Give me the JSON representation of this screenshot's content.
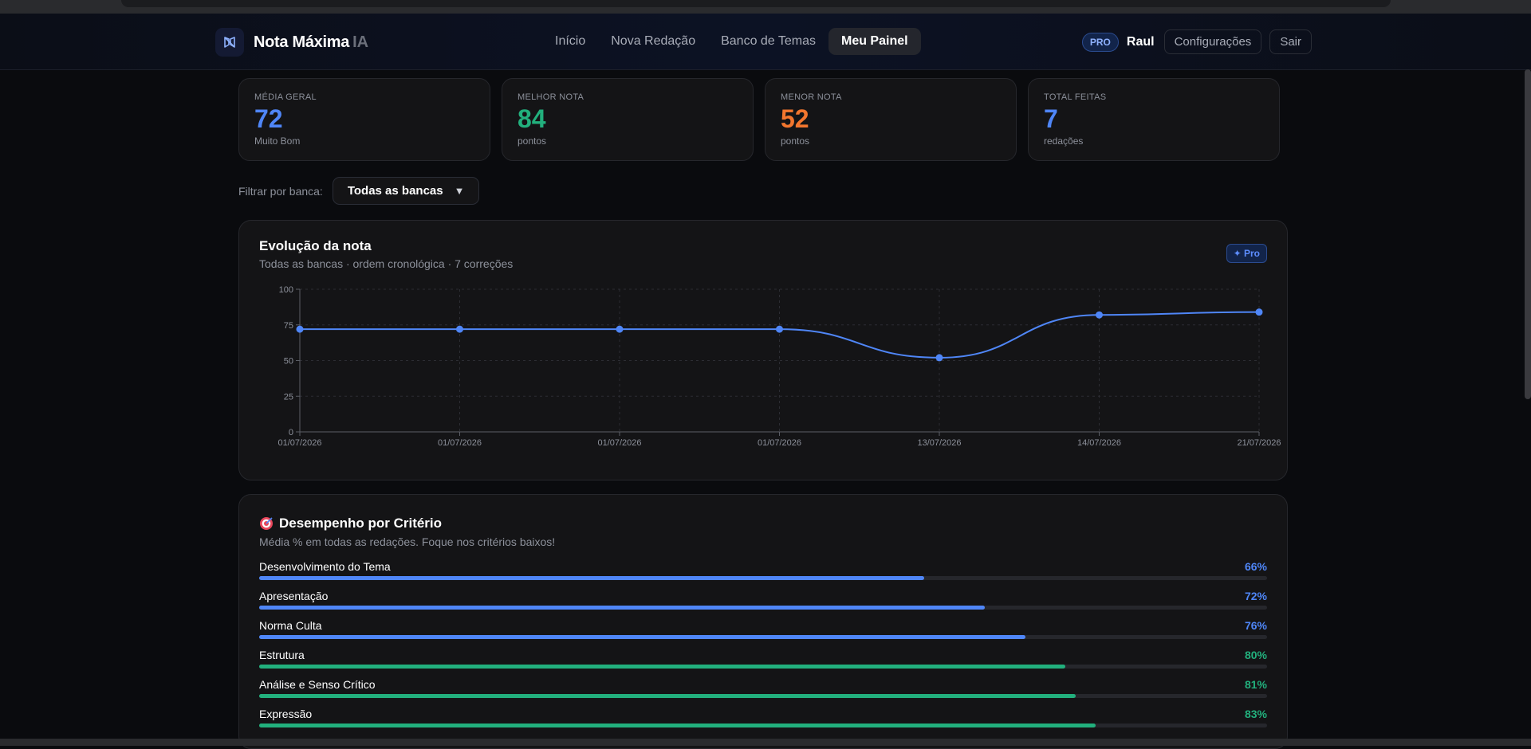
{
  "brand": {
    "name": "Nota Máxima",
    "suffix": "IA",
    "logo_icon": "book-icon",
    "logo_color": "#8fb2ff"
  },
  "nav": {
    "links": [
      "Início",
      "Nova Redação",
      "Banco de Temas",
      "Meu Painel"
    ],
    "active": "Meu Painel",
    "badge": "PRO",
    "user": "Raul",
    "settings_label": "Configurações",
    "logout_label": "Sair"
  },
  "stats": [
    {
      "label": "MÉDIA GERAL",
      "value": "72",
      "sub": "Muito Bom",
      "color": "#4f86f7"
    },
    {
      "label": "MELHOR NOTA",
      "value": "84",
      "sub": "pontos",
      "color": "#22b07d"
    },
    {
      "label": "MENOR NOTA",
      "value": "52",
      "sub": "pontos",
      "color": "#f2762e"
    },
    {
      "label": "TOTAL FEITAS",
      "value": "7",
      "sub": "redações",
      "color": "#4f86f7"
    }
  ],
  "filter": {
    "label": "Filtrar por banca:",
    "value": "Todas as bancas"
  },
  "chart": {
    "title": "Evolução da nota",
    "subtitle": "Todas as bancas · ordem cronológica · 7 correções",
    "pro_chip": "✦ Pro"
  },
  "chart_data": {
    "type": "line",
    "categories": [
      "01/07/2026",
      "01/07/2026",
      "01/07/2026",
      "01/07/2026",
      "13/07/2026",
      "14/07/2026",
      "21/07/2026"
    ],
    "values": [
      72,
      72,
      72,
      72,
      52,
      82,
      84
    ],
    "ylim": [
      0,
      100
    ],
    "yticks": [
      0,
      25,
      50,
      75,
      100
    ],
    "grid": true,
    "color": "#4f86f7"
  },
  "criteria": {
    "title": "Desempenho por Critério",
    "icon": "target-icon",
    "subtitle": "Média % em todas as redações. Foque nos critérios baixos!",
    "items": [
      {
        "name": "Desenvolvimento do Tema",
        "value": 66,
        "label": "66%",
        "color": "#4f86f7"
      },
      {
        "name": "Apresentação",
        "value": 72,
        "label": "72%",
        "color": "#4f86f7"
      },
      {
        "name": "Norma Culta",
        "value": 76,
        "label": "76%",
        "color": "#4f86f7"
      },
      {
        "name": "Estrutura",
        "value": 80,
        "label": "80%",
        "color": "#22b07d"
      },
      {
        "name": "Análise e Senso Crítico",
        "value": 81,
        "label": "81%",
        "color": "#22b07d"
      },
      {
        "name": "Expressão",
        "value": 83,
        "label": "83%",
        "color": "#22b07d"
      }
    ]
  }
}
